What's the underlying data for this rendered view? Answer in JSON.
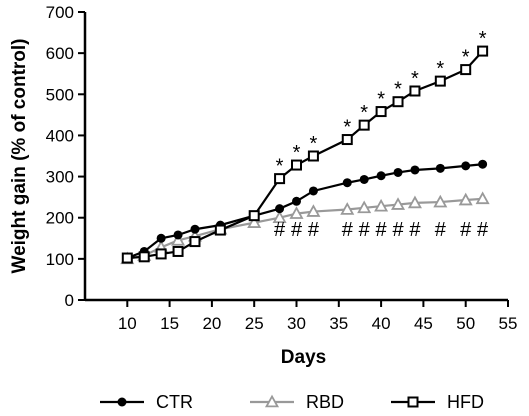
{
  "chart_data": {
    "type": "line",
    "xlabel": "Days",
    "ylabel": "Weight gain (% of control)",
    "xlim": [
      5,
      55
    ],
    "ylim": [
      0,
      700
    ],
    "xticks": [
      10,
      15,
      20,
      25,
      30,
      35,
      40,
      45,
      50,
      55
    ],
    "yticks": [
      0,
      100,
      200,
      300,
      400,
      500,
      600,
      700
    ],
    "grid": false,
    "legend_position": "bottom",
    "series": [
      {
        "name": "CTR",
        "color": "#000000",
        "marker": "filled-circle",
        "x": [
          10,
          12,
          14,
          16,
          18,
          21,
          25,
          28,
          30,
          32,
          36,
          38,
          40,
          42,
          44,
          47,
          50,
          52
        ],
        "y": [
          102,
          118,
          150,
          158,
          172,
          182,
          205,
          222,
          240,
          265,
          285,
          293,
          302,
          310,
          316,
          320,
          326,
          330
        ]
      },
      {
        "name": "RBD",
        "color": "#999999",
        "marker": "open-triangle",
        "x": [
          10,
          12,
          14,
          16,
          18,
          21,
          25,
          28,
          30,
          32,
          36,
          38,
          40,
          42,
          44,
          47,
          50,
          52
        ],
        "y": [
          100,
          108,
          128,
          145,
          155,
          172,
          188,
          200,
          210,
          215,
          220,
          224,
          228,
          232,
          236,
          238,
          243,
          246
        ]
      },
      {
        "name": "HFD",
        "color": "#000000",
        "marker": "open-square",
        "x": [
          10,
          12,
          14,
          16,
          18,
          21,
          25,
          28,
          30,
          32,
          36,
          38,
          40,
          42,
          44,
          47,
          50,
          52
        ],
        "y": [
          102,
          105,
          112,
          118,
          142,
          170,
          205,
          295,
          328,
          350,
          390,
          425,
          458,
          482,
          508,
          532,
          560,
          605
        ]
      }
    ],
    "annotations": {
      "star_symbol": "*",
      "hash_symbol": "#",
      "star_days": [
        28,
        30,
        32,
        36,
        38,
        40,
        42,
        44,
        47,
        50,
        52
      ],
      "hash_days": [
        28,
        30,
        32,
        36,
        38,
        40,
        42,
        44,
        47,
        50,
        52
      ]
    }
  }
}
